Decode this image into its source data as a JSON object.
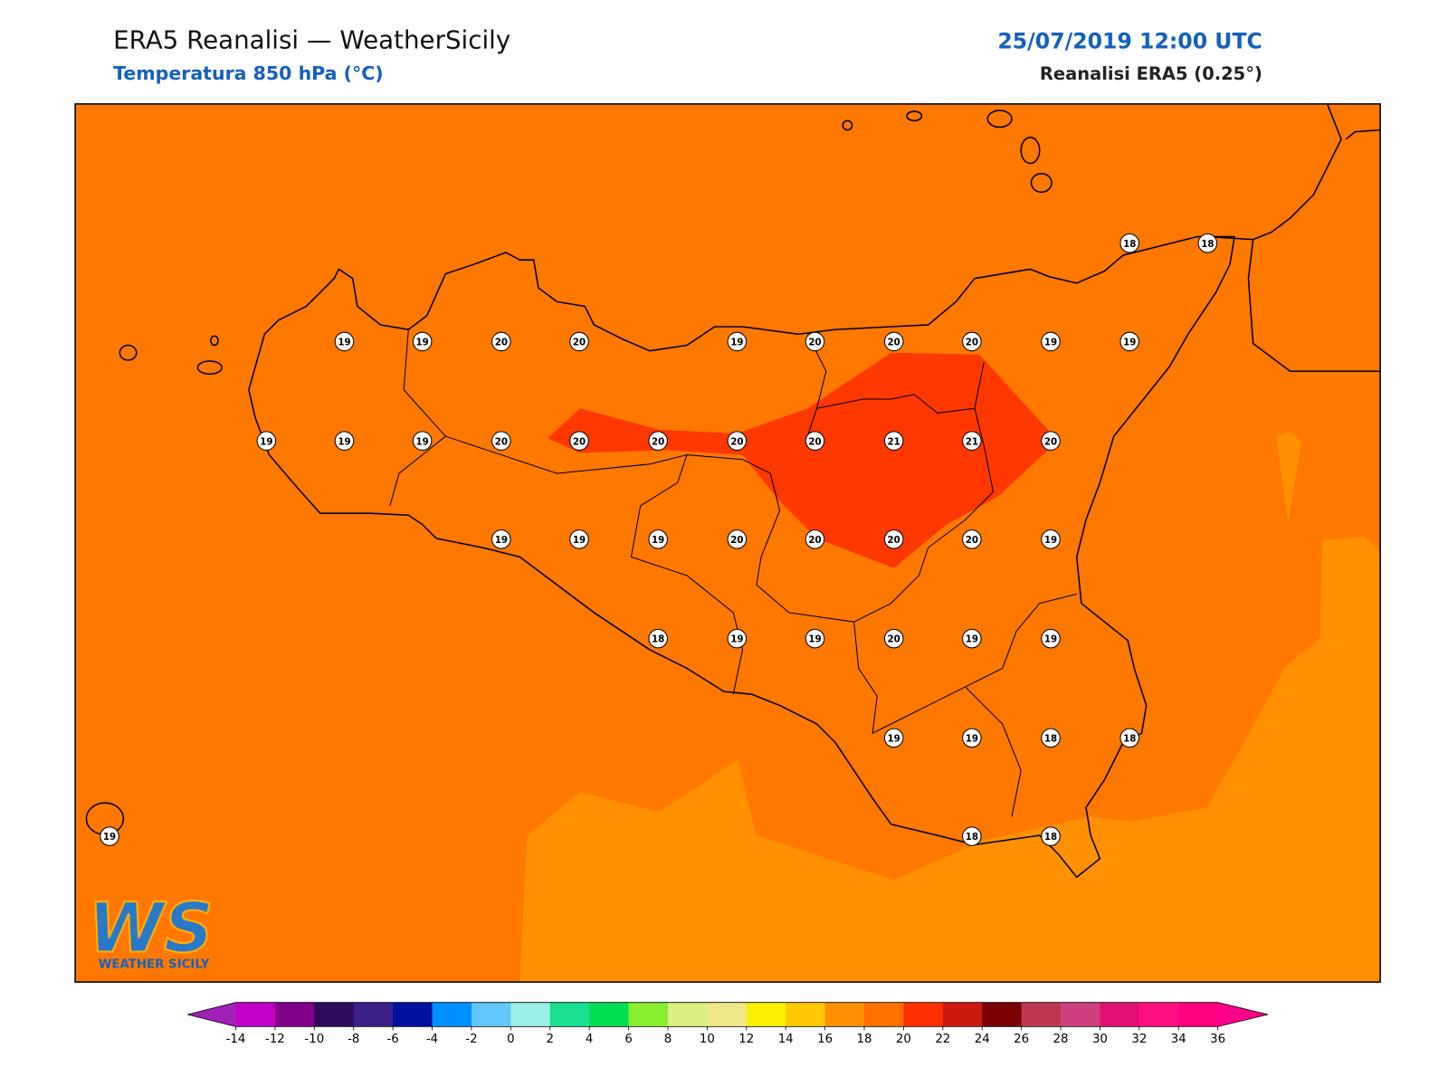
{
  "header": {
    "title": "ERA5 Reanalisi — WeatherSicily",
    "subtitle": "Temperatura 850 hPa (°C)",
    "datetime": "25/07/2019 12:00 UTC",
    "source": "Reanalisi ERA5 (0.25°)"
  },
  "stations": [
    18,
    18,
    19,
    19,
    20,
    20,
    19,
    20,
    20,
    20,
    19,
    19,
    19,
    19,
    19,
    20,
    20,
    20,
    20,
    20,
    21,
    21,
    20,
    19,
    19,
    19,
    20,
    20,
    20,
    20,
    19,
    18,
    19,
    19,
    20,
    19,
    19,
    19,
    19,
    18,
    18,
    19,
    18,
    18
  ],
  "colorbar": {
    "ticks": [
      -14,
      -12,
      -10,
      -8,
      -6,
      -4,
      -2,
      0,
      2,
      4,
      6,
      8,
      10,
      12,
      14,
      16,
      18,
      20,
      22,
      24,
      26,
      28,
      30,
      32,
      34,
      36
    ],
    "colors": [
      "#c000c8",
      "#80008a",
      "#2e0a5a",
      "#3a2088",
      "#0010a0",
      "#0090ff",
      "#60c8f8",
      "#98f0e8",
      "#18e090",
      "#00dd50",
      "#88ee30",
      "#d8f080",
      "#f0e888",
      "#f8f000",
      "#ffc800",
      "#ff9000",
      "#ff7000",
      "#ff3000",
      "#cc1a10",
      "#780000",
      "#c03850",
      "#d04080",
      "#e01070",
      "#ff1080",
      "#ff0080"
    ],
    "under_color": "#a020b8",
    "over_color": "#ff0088"
  },
  "logo": {
    "mark": "WS",
    "name": "WEATHER SICILY"
  }
}
